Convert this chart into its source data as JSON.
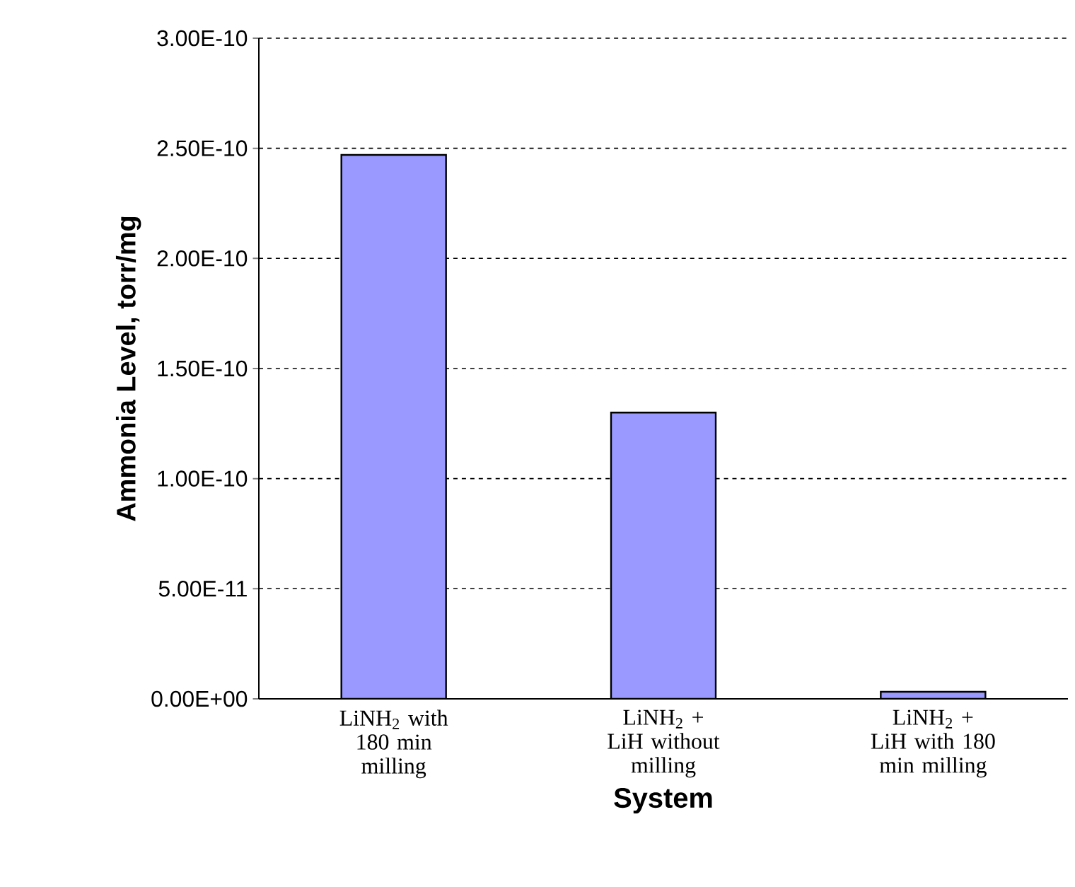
{
  "chart_data": {
    "type": "bar",
    "xlabel": "System",
    "ylabel": "Ammonia Level, torr/mg",
    "categories": [
      "LiNH$_{2}$ with 180 min milling",
      "LiNH$_{2}$ + LiH without milling",
      "LiNH$_{2}$ + LiH with 180 min milling"
    ],
    "values": [
      2.47e-10,
      1.3e-10,
      3.2e-12
    ],
    "color": "#9999ff",
    "ylim": [
      0,
      3e-10
    ],
    "yticks": [
      {
        "value": 0,
        "label": "0.00E+00"
      },
      {
        "value": 5e-11,
        "label": "5.00E-11"
      },
      {
        "value": 1e-10,
        "label": "1.00E-10"
      },
      {
        "value": 1.5e-10,
        "label": "1.50E-10"
      },
      {
        "value": 2e-10,
        "label": "2.00E-10"
      },
      {
        "value": 2.5e-10,
        "label": "2.50E-10"
      },
      {
        "value": 3e-10,
        "label": "3.00E-10"
      }
    ],
    "grid": "y"
  }
}
